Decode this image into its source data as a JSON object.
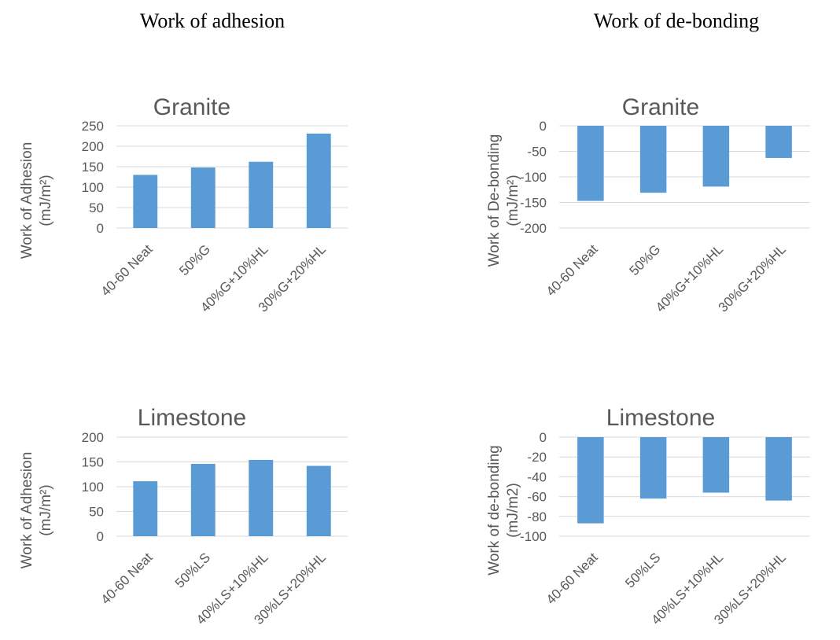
{
  "headings": {
    "left": "Work of adhesion",
    "right": "Work of de-bonding"
  },
  "colors": {
    "bar": "#5b9bd5",
    "grid": "#d9d9d9",
    "text": "#595959"
  },
  "chart_data": [
    {
      "type": "bar",
      "title": "Granite",
      "ylabel_lines": [
        "Work of Adhesion",
        "(mJ/m²)"
      ],
      "categories": [
        "40-60 Neat",
        "50%G",
        "40%G+10%HL",
        "30%G+20%HL"
      ],
      "values": [
        130,
        148,
        162,
        231
      ],
      "ylim": [
        0,
        250
      ],
      "yticks": [
        0,
        50,
        100,
        150,
        200,
        250
      ],
      "grid": true
    },
    {
      "type": "bar",
      "title": "Granite",
      "ylabel_lines": [
        "Work of De-bonding",
        "(mJ/m²)"
      ],
      "categories": [
        "40-60 Neat",
        "50%G",
        "40%G+10%HL",
        "30%G+20%HL"
      ],
      "values": [
        -147,
        -131,
        -119,
        -63
      ],
      "ylim": [
        -200,
        0
      ],
      "yticks": [
        0,
        -50,
        -100,
        -150,
        -200
      ],
      "grid": true
    },
    {
      "type": "bar",
      "title": "Limestone",
      "ylabel_lines": [
        "Work of Adhesion",
        "(mJ/m²)"
      ],
      "categories": [
        "40-60 Neat",
        "50%LS",
        "40%LS+10%HL",
        "30%LS+20%HL"
      ],
      "values": [
        111,
        146,
        154,
        142
      ],
      "ylim": [
        0,
        200
      ],
      "yticks": [
        0,
        50,
        100,
        150,
        200
      ],
      "grid": true
    },
    {
      "type": "bar",
      "title": "Limestone",
      "ylabel_lines": [
        "Work of de-bonding",
        "(mJ/m2)"
      ],
      "categories": [
        "40-60 Neat",
        "50%LS",
        "40%LS+10%HL",
        "30%LS+20%HL"
      ],
      "values": [
        -87,
        -62,
        -56,
        -64
      ],
      "ylim": [
        -100,
        0
      ],
      "yticks": [
        0,
        -20,
        -40,
        -60,
        -80,
        -100
      ],
      "grid": true
    }
  ]
}
